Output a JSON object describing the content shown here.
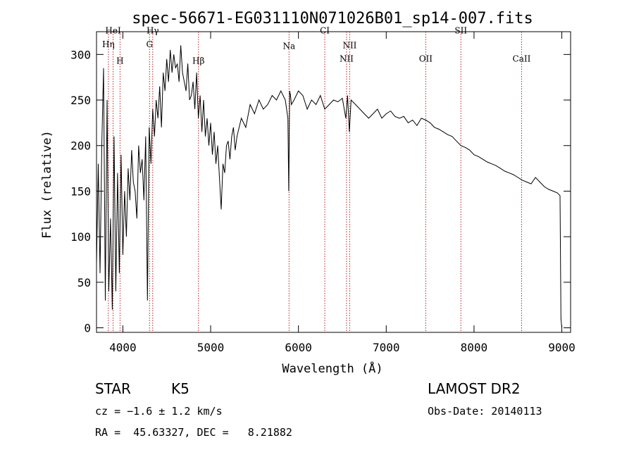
{
  "chart_data": {
    "type": "line",
    "title": "spec-56671-EG031110N071026B01_sp14-007.fits",
    "xlabel": "Wavelength (Å)",
    "ylabel": "Flux (relative)",
    "xlim": [
      3700,
      9100
    ],
    "ylim": [
      -5,
      325
    ],
    "x_ticks": [
      4000,
      5000,
      6000,
      7000,
      8000,
      9000
    ],
    "y_ticks": [
      0,
      50,
      100,
      150,
      200,
      250,
      300
    ],
    "grid": false,
    "series": [
      {
        "x": [
          3700,
          3720,
          3740,
          3760,
          3780,
          3800,
          3820,
          3840,
          3860,
          3880,
          3900,
          3920,
          3940,
          3960,
          3980,
          4000,
          4020,
          4040,
          4060,
          4080,
          4100,
          4120,
          4140,
          4160,
          4180,
          4200,
          4220,
          4240,
          4260,
          4280,
          4300,
          4320,
          4340,
          4360,
          4380,
          4400,
          4420,
          4440,
          4460,
          4480,
          4500,
          4520,
          4540,
          4560,
          4580,
          4600,
          4620,
          4640,
          4660,
          4680,
          4700,
          4720,
          4740,
          4760,
          4780,
          4800,
          4820,
          4840,
          4860,
          4880,
          4900,
          4920,
          4940,
          4960,
          4980,
          5000,
          5020,
          5040,
          5060,
          5080,
          5100,
          5120,
          5140,
          5160,
          5180,
          5200,
          5220,
          5240,
          5260,
          5280,
          5300,
          5350,
          5400,
          5450,
          5500,
          5550,
          5600,
          5650,
          5700,
          5750,
          5800,
          5850,
          5880,
          5890,
          5900,
          5910,
          5920,
          5950,
          6000,
          6050,
          6100,
          6150,
          6200,
          6250,
          6300,
          6350,
          6400,
          6450,
          6500,
          6540,
          6560,
          6580,
          6600,
          6650,
          6700,
          6750,
          6800,
          6850,
          6900,
          6950,
          7000,
          7050,
          7100,
          7150,
          7200,
          7250,
          7300,
          7350,
          7400,
          7450,
          7500,
          7550,
          7600,
          7650,
          7700,
          7750,
          7800,
          7850,
          7900,
          7950,
          8000,
          8050,
          8100,
          8150,
          8200,
          8250,
          8300,
          8350,
          8400,
          8450,
          8500,
          8550,
          8600,
          8650,
          8700,
          8750,
          8800,
          8850,
          8900,
          8950,
          8980,
          8990,
          9000
        ],
        "y": [
          70,
          180,
          60,
          200,
          285,
          30,
          250,
          40,
          120,
          20,
          210,
          40,
          170,
          60,
          190,
          80,
          150,
          100,
          175,
          140,
          195,
          160,
          150,
          120,
          200,
          170,
          185,
          140,
          210,
          30,
          220,
          180,
          240,
          210,
          250,
          230,
          265,
          220,
          280,
          260,
          295,
          270,
          305,
          280,
          300,
          285,
          290,
          270,
          310,
          280,
          270,
          260,
          290,
          250,
          255,
          270,
          240,
          280,
          230,
          255,
          215,
          250,
          210,
          230,
          200,
          225,
          190,
          215,
          180,
          200,
          165,
          130,
          180,
          170,
          200,
          205,
          185,
          210,
          220,
          195,
          210,
          230,
          220,
          245,
          235,
          250,
          240,
          245,
          255,
          250,
          260,
          250,
          230,
          150,
          260,
          255,
          245,
          250,
          260,
          255,
          240,
          250,
          245,
          255,
          240,
          245,
          250,
          248,
          252,
          230,
          255,
          215,
          250,
          245,
          240,
          235,
          230,
          235,
          240,
          230,
          235,
          238,
          232,
          230,
          232,
          225,
          228,
          222,
          230,
          228,
          225,
          220,
          218,
          215,
          212,
          210,
          205,
          200,
          198,
          195,
          190,
          188,
          185,
          182,
          180,
          178,
          175,
          172,
          170,
          168,
          165,
          162,
          160,
          158,
          165,
          160,
          155,
          152,
          150,
          148,
          145,
          10,
          0
        ]
      }
    ],
    "lines": [
      {
        "name": "Hη",
        "x": 3835,
        "label_y": 308
      },
      {
        "name": "HeI",
        "x": 3889,
        "label_y": 323
      },
      {
        "name": "H",
        "x": 3968,
        "label_y": 290
      },
      {
        "name": "Hγ",
        "x": 4340,
        "label_y": 323
      },
      {
        "name": "G",
        "x": 4304,
        "label_y": 308
      },
      {
        "name": "Hβ",
        "x": 4861,
        "label_y": 290
      },
      {
        "name": "Na",
        "x": 5893,
        "label_y": 306
      },
      {
        "name": "CI",
        "x": 6300,
        "label_y": 323
      },
      {
        "name": "NII",
        "x": 6584,
        "label_y": 307
      },
      {
        "name": "NII",
        "x": 6548,
        "label_y": 292
      },
      {
        "name": "OII",
        "x": 7450,
        "label_y": 292
      },
      {
        "name": "SII",
        "x": 7850,
        "label_y": 323
      },
      {
        "name": "CaII",
        "x": 8542,
        "label_y": 292
      }
    ]
  },
  "info": {
    "class": "STAR",
    "subclass": "K5",
    "cz": "cz = −1.6 ± 1.2 km/s",
    "radec": "RA =  45.63327, DEC =   8.21882",
    "survey": "LAMOST DR2",
    "obsdate": "Obs-Date: 20140113"
  }
}
